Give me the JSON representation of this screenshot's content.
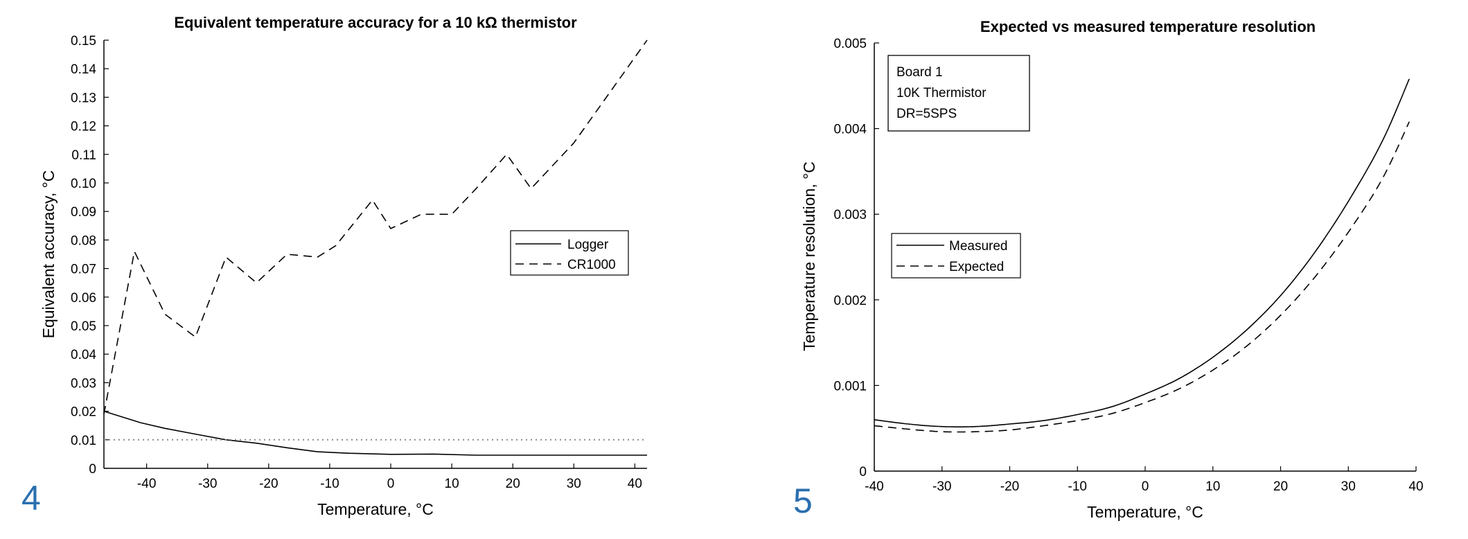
{
  "panels": [
    {
      "number": "4"
    },
    {
      "number": "5"
    }
  ],
  "chart_data": [
    {
      "type": "line",
      "title": "Equivalent temperature accuracy for a 10 kΩ thermistor",
      "xlabel": "Temperature, °C",
      "ylabel": "Equivalent accuracy, °C",
      "xlim": [
        -47,
        42
      ],
      "ylim": [
        0,
        0.15
      ],
      "xticks": [
        -40,
        -30,
        -20,
        -10,
        0,
        10,
        20,
        30,
        40
      ],
      "xticklabels": [
        "-40",
        "-30",
        "-20",
        "-10",
        "0",
        "10",
        "20",
        "30",
        "40"
      ],
      "yticks": [
        0,
        0.01,
        0.02,
        0.03,
        0.04,
        0.05,
        0.06,
        0.07,
        0.08,
        0.09,
        0.1,
        0.11,
        0.12,
        0.13,
        0.14,
        0.15
      ],
      "yticklabels": [
        "0",
        "0.01",
        "0.02",
        "0.03",
        "0.04",
        "0.05",
        "0.06",
        "0.07",
        "0.08",
        "0.09",
        "0.10",
        "0.11",
        "0.12",
        "0.13",
        "0.14",
        "0.15"
      ],
      "grid": false,
      "legend_position": "center-right",
      "series": [
        {
          "name": "Logger",
          "style": "solid",
          "x": [
            -47,
            -41,
            -37,
            -32,
            -27,
            -22,
            -17,
            -12,
            -7,
            0,
            7,
            14,
            20,
            30,
            42
          ],
          "y": [
            0.02,
            0.016,
            0.014,
            0.012,
            0.01,
            0.0088,
            0.0072,
            0.0058,
            0.0053,
            0.0049,
            0.005,
            0.0046,
            0.0046,
            0.0046,
            0.0046
          ]
        },
        {
          "name": "CR1000",
          "style": "dashed",
          "x": [
            -47,
            -42,
            -37,
            -32,
            -27,
            -22,
            -17,
            -12,
            -9,
            -3,
            0,
            5,
            10,
            14,
            19,
            23,
            30,
            42
          ],
          "y": [
            0.019,
            0.076,
            0.054,
            0.046,
            0.074,
            0.065,
            0.075,
            0.074,
            0.078,
            0.094,
            0.084,
            0.089,
            0.089,
            0.098,
            0.11,
            0.098,
            0.114,
            0.15
          ]
        },
        {
          "name": "",
          "style": "dotted",
          "x": [
            -47,
            42
          ],
          "y": [
            0.01,
            0.01
          ]
        }
      ]
    },
    {
      "type": "line",
      "title": "Expected vs measured temperature resolution",
      "xlabel": "Temperature, °C",
      "ylabel": "Temperature resolution, °C",
      "xlim": [
        -40,
        40
      ],
      "ylim": [
        0,
        0.005
      ],
      "xticks": [
        -40,
        -30,
        -20,
        -10,
        0,
        10,
        20,
        30,
        40
      ],
      "xticklabels": [
        "-40",
        "-30",
        "-20",
        "-10",
        "0",
        "10",
        "20",
        "30",
        "40"
      ],
      "yticks": [
        0,
        0.001,
        0.002,
        0.003,
        0.004,
        0.005
      ],
      "yticklabels": [
        "0",
        "0.001",
        "0.002",
        "0.003",
        "0.004",
        "0.005"
      ],
      "grid": false,
      "legend_position": "center-left",
      "annotation": [
        "Board 1",
        "10K Thermistor",
        "DR=5SPS"
      ],
      "series": [
        {
          "name": "Measured",
          "style": "solid",
          "x": [
            -40,
            -35,
            -30,
            -25,
            -20,
            -15,
            -10,
            -5,
            0,
            5,
            10,
            15,
            20,
            25,
            30,
            35,
            39
          ],
          "y": [
            0.0006,
            0.00055,
            0.00052,
            0.00052,
            0.00055,
            0.00059,
            0.00066,
            0.00075,
            0.0009,
            0.00108,
            0.00133,
            0.00165,
            0.00205,
            0.00255,
            0.00315,
            0.00385,
            0.00458
          ]
        },
        {
          "name": "Expected",
          "style": "dashed",
          "x": [
            -40,
            -35,
            -30,
            -25,
            -20,
            -15,
            -10,
            -5,
            0,
            5,
            10,
            15,
            20,
            25,
            30,
            35,
            39
          ],
          "y": [
            0.00053,
            0.00049,
            0.00046,
            0.00046,
            0.00048,
            0.00053,
            0.00059,
            0.00067,
            0.0008,
            0.00096,
            0.00118,
            0.00146,
            0.00182,
            0.00226,
            0.00279,
            0.00341,
            0.00408
          ]
        }
      ]
    }
  ]
}
